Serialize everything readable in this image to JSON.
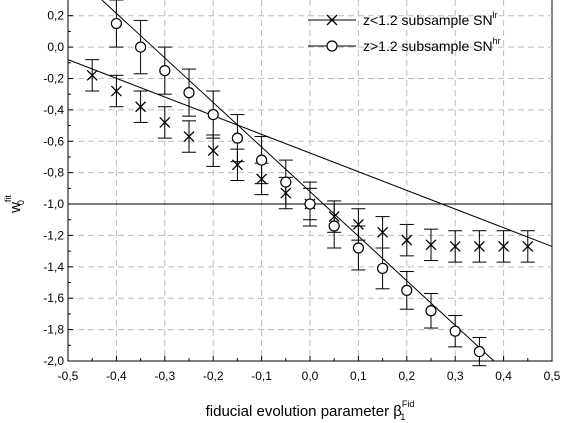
{
  "chart_data": {
    "type": "scatter",
    "xlabel": {
      "main": "fiducial evolution parameter β",
      "sub": "1",
      "sup": "Fid"
    },
    "ylabel": {
      "main": "w",
      "sub": "0",
      "sup": "fit"
    },
    "xlim": [
      -0.5,
      0.5
    ],
    "ylim": [
      -2.0,
      0.3
    ],
    "xticks": [
      -0.5,
      -0.4,
      -0.3,
      -0.2,
      -0.1,
      0.0,
      0.1,
      0.2,
      0.3,
      0.4,
      0.5
    ],
    "xtick_labels": [
      "-0,5",
      "-0,4",
      "-0,3",
      "-0,2",
      "-0,1",
      "0,0",
      "0,1",
      "0,2",
      "0,3",
      "0,4",
      "0,5"
    ],
    "yticks": [
      0.2,
      0.0,
      -0.2,
      -0.4,
      -0.6,
      -0.8,
      -1.0,
      -1.2,
      -1.4,
      -1.6,
      -1.8,
      -2.0
    ],
    "ytick_labels": [
      "0,2",
      "0,0",
      "-0,2",
      "-0,4",
      "-0,6",
      "-0,8",
      "-1,0",
      "-1,2",
      "-1,4",
      "-1,6",
      "-1,8",
      "-2,0"
    ],
    "grid": true,
    "reference_line_y": -1.0,
    "legend_position": "top-right",
    "series": [
      {
        "name": "z<1.2 subsample SN",
        "name_sup": "lr",
        "marker": "x",
        "line_x": [
          -0.5,
          0.5
        ],
        "line_y": [
          -0.08,
          -1.27
        ],
        "x": [
          -0.45,
          -0.4,
          -0.35,
          -0.3,
          -0.25,
          -0.2,
          -0.15,
          -0.1,
          -0.05,
          0.0,
          0.05,
          0.1,
          0.15,
          0.2,
          0.25,
          0.3,
          0.35,
          0.4,
          0.45
        ],
        "y": [
          -0.18,
          -0.28,
          -0.38,
          -0.48,
          -0.57,
          -0.66,
          -0.75,
          -0.84,
          -0.93,
          -1.0,
          -1.08,
          -1.13,
          -1.18,
          -1.23,
          -1.26,
          -1.27,
          -1.27,
          -1.27,
          -1.27
        ],
        "err": [
          0.1,
          0.1,
          0.1,
          0.1,
          0.1,
          0.1,
          0.1,
          0.1,
          0.1,
          0.1,
          0.1,
          0.1,
          0.1,
          0.1,
          0.1,
          0.1,
          0.1,
          0.1,
          0.1
        ]
      },
      {
        "name": "z>1.2 subsample SN",
        "name_sup": "hr",
        "marker": "o",
        "line_x": [
          -0.43,
          0.38
        ],
        "line_y": [
          0.3,
          -2.0
        ],
        "x": [
          -0.4,
          -0.35,
          -0.3,
          -0.25,
          -0.2,
          -0.15,
          -0.1,
          -0.05,
          0.0,
          0.05,
          0.1,
          0.15,
          0.2,
          0.25,
          0.3,
          0.35
        ],
        "y": [
          0.15,
          0.0,
          -0.15,
          -0.29,
          -0.43,
          -0.58,
          -0.72,
          -0.86,
          -1.0,
          -1.14,
          -1.28,
          -1.41,
          -1.55,
          -1.68,
          -1.81,
          -1.94
        ],
        "err": [
          0.15,
          0.17,
          0.15,
          0.15,
          0.15,
          0.15,
          0.15,
          0.14,
          0.14,
          0.14,
          0.14,
          0.13,
          0.12,
          0.11,
          0.1,
          0.09
        ]
      }
    ]
  }
}
